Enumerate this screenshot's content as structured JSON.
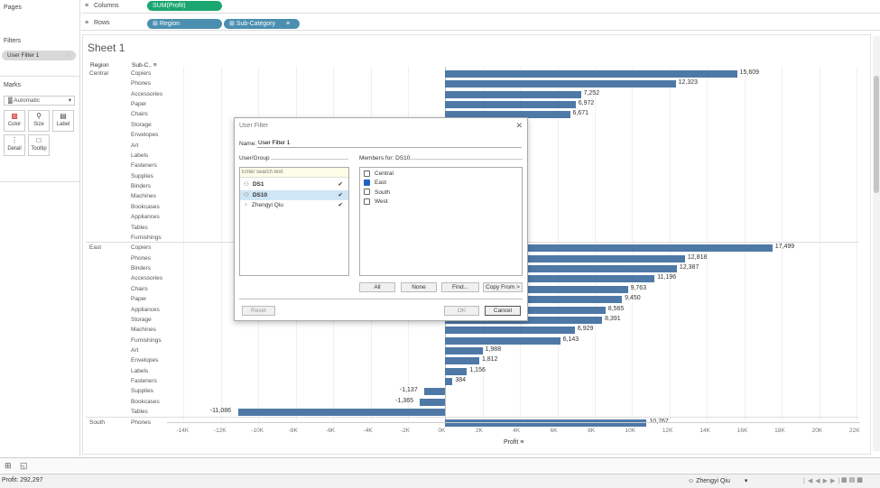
{
  "shelves": {
    "pages_label": "Pages",
    "columns_label": "Columns",
    "rows_label": "Rows",
    "columns_pill": "SUM(Profit)",
    "rows_pills": [
      "Region",
      "Sub-Category"
    ]
  },
  "filters": {
    "label": "Filters",
    "pill": "User Filter 1"
  },
  "marks": {
    "label": "Marks",
    "type": "Automatic",
    "cards": [
      "Color",
      "Size",
      "Label",
      "Detail",
      "Tooltip"
    ]
  },
  "sheet": {
    "title": "Sheet 1",
    "col_headers": [
      "Region",
      "Sub-C.."
    ],
    "x_axis_label": "Profit",
    "x_ticks": [
      "-14K",
      "-12K",
      "-10K",
      "-8K",
      "-6K",
      "-4K",
      "-2K",
      "0K",
      "2K",
      "4K",
      "6K",
      "8K",
      "10K",
      "12K",
      "14K",
      "16K",
      "18K",
      "20K",
      "22K"
    ]
  },
  "chart_data": {
    "type": "bar",
    "x_label": "Profit",
    "xlim": [
      -14700,
      22000
    ],
    "groups": [
      {
        "region": "Central",
        "rows": [
          {
            "sub": "Copiers",
            "value": 15609,
            "label": "15,609"
          },
          {
            "sub": "Phones",
            "value": 12323,
            "label": "12,323"
          },
          {
            "sub": "Accessories",
            "value": 7252,
            "label": "7,252"
          },
          {
            "sub": "Paper",
            "value": 6972,
            "label": "6,972"
          },
          {
            "sub": "Chairs",
            "value": 6671,
            "label": "6,671"
          },
          {
            "sub": "Storage",
            "value": null,
            "label": ""
          },
          {
            "sub": "Envelopes",
            "value": null,
            "label": ""
          },
          {
            "sub": "Art",
            "value": null,
            "label": ""
          },
          {
            "sub": "Labels",
            "value": null,
            "label": ""
          },
          {
            "sub": "Fasteners",
            "value": null,
            "label": ""
          },
          {
            "sub": "Supplies",
            "value": null,
            "label": ""
          },
          {
            "sub": "Binders",
            "value": null,
            "label": ""
          },
          {
            "sub": "Machines",
            "value": null,
            "label": ""
          },
          {
            "sub": "Bookcases",
            "value": null,
            "label": ""
          },
          {
            "sub": "Appliances",
            "value": null,
            "label": ""
          },
          {
            "sub": "Tables",
            "value": null,
            "label": ""
          },
          {
            "sub": "Furnishings",
            "value": null,
            "label": ""
          }
        ]
      },
      {
        "region": "East",
        "rows": [
          {
            "sub": "Copiers",
            "value": 17499,
            "label": "17,499"
          },
          {
            "sub": "Phones",
            "value": 12818,
            "label": "12,818"
          },
          {
            "sub": "Binders",
            "value": 12387,
            "label": "12,387"
          },
          {
            "sub": "Accessories",
            "value": 11196,
            "label": "11,196"
          },
          {
            "sub": "Chairs",
            "value": 9763,
            "label": "9,763"
          },
          {
            "sub": "Paper",
            "value": 9450,
            "label": "9,450"
          },
          {
            "sub": "Appliances",
            "value": 8565,
            "label": "8,565"
          },
          {
            "sub": "Storage",
            "value": 8391,
            "label": "8,391"
          },
          {
            "sub": "Machines",
            "value": 6929,
            "label": "6,929"
          },
          {
            "sub": "Furnishings",
            "value": 6143,
            "label": "6,143"
          },
          {
            "sub": "Art",
            "value": 1988,
            "label": "1,988"
          },
          {
            "sub": "Envelopes",
            "value": 1812,
            "label": "1,812"
          },
          {
            "sub": "Labels",
            "value": 1156,
            "label": "1,156"
          },
          {
            "sub": "Fasteners",
            "value": 384,
            "label": "384"
          },
          {
            "sub": "Supplies",
            "value": -1137,
            "label": "-1,137"
          },
          {
            "sub": "Bookcases",
            "value": -1365,
            "label": "-1,365"
          },
          {
            "sub": "Tables",
            "value": -11086,
            "label": "-11,086"
          }
        ]
      },
      {
        "region": "South",
        "rows": [
          {
            "sub": "Phones",
            "value": 10767,
            "label": "10,767"
          }
        ]
      }
    ]
  },
  "dialog": {
    "title": "User Filter",
    "name_label": "Name:",
    "name_value": "User Filter 1",
    "user_group_label": "User/Group",
    "members_label": "Members for: DS10",
    "search_placeholder": "Enter search text",
    "users": [
      {
        "name": "DS1",
        "type": "group",
        "checked": true,
        "selected": false
      },
      {
        "name": "DS10",
        "type": "group",
        "checked": true,
        "selected": true
      },
      {
        "name": "Zhengyi Qiu",
        "type": "user",
        "checked": true,
        "selected": false
      }
    ],
    "members": [
      {
        "name": "Central",
        "checked": false
      },
      {
        "name": "East",
        "checked": true
      },
      {
        "name": "South",
        "checked": false
      },
      {
        "name": "West",
        "checked": false
      }
    ],
    "buttons": {
      "all": "All",
      "none": "None",
      "find": "Find...",
      "copy": "Copy From >",
      "reset": "Reset",
      "ok": "OK",
      "cancel": "Cancel"
    }
  },
  "status_bar": {
    "profit": "Profit: 292,297",
    "user": "Zhengyi Qiu"
  }
}
